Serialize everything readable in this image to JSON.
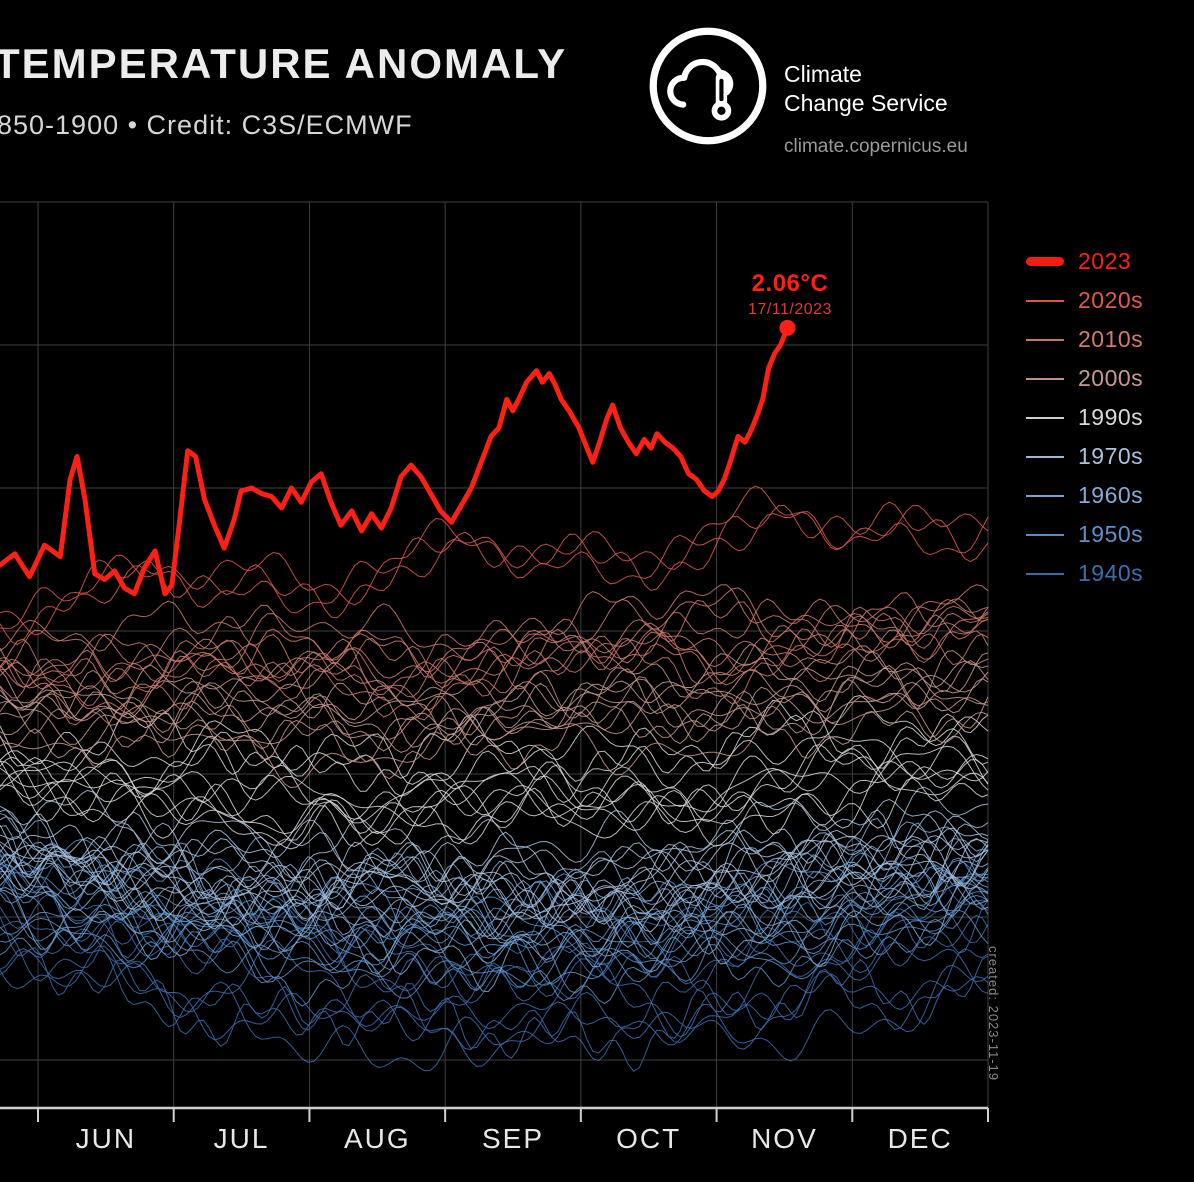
{
  "header": {
    "title": "TEMPERATURE ANOMALY",
    "subtitle": "850-1900 • Credit: C3S/ECMWF"
  },
  "logo": {
    "org_line1": "Climate",
    "org_line2": "Change Service",
    "url": "climate.copernicus.eu",
    "icon": "c3s-cloud-thermometer-icon"
  },
  "annotation": {
    "value": "2.06°C",
    "date": "17/11/2023",
    "color": "#ff2015",
    "date_color": "#e03a2e"
  },
  "created_note": "created: 2023-11-19",
  "colors": {
    "background": "#000000",
    "grid": "#3f3f3f",
    "axis": "#cfcfcf",
    "title_text": "#ececec",
    "subtitle_text": "#d6d6d6"
  },
  "legend": {
    "position": "right",
    "items": [
      {
        "label": "2023",
        "color": "#ff2015",
        "thick": true
      },
      {
        "label": "2020s",
        "color": "#df5b4b",
        "thick": false
      },
      {
        "label": "2010s",
        "color": "#d07b6d",
        "thick": false
      },
      {
        "label": "2000s",
        "color": "#c89a8e",
        "thick": false
      },
      {
        "label": "1990s",
        "color": "#d9d9d9",
        "thick": false
      },
      {
        "label": "1970s",
        "color": "#a9c3de",
        "thick": false
      },
      {
        "label": "1960s",
        "color": "#82add6",
        "thick": false
      },
      {
        "label": "1950s",
        "color": "#5d92c9",
        "thick": false
      },
      {
        "label": "1940s",
        "color": "#3d6fb0",
        "thick": false
      }
    ]
  },
  "chart_data": {
    "type": "line",
    "title": "TEMPERATURE ANOMALY",
    "subtitle": "850-1900 • Credit: C3S/ECMWF",
    "xlabel": "",
    "ylabel": "",
    "y_unit": "°C",
    "grid": true,
    "legend_position": "right",
    "x_ticks": [
      "JUN",
      "JUL",
      "AUG",
      "SEP",
      "OCT",
      "NOV",
      "DEC"
    ],
    "ylim": [
      -0.75,
      2.6
    ],
    "y_gridlines": [
      2.5,
      2.0,
      1.5,
      1.0,
      0.5,
      0.0,
      -0.5
    ],
    "peak_annotation": {
      "value_c": 2.06,
      "date": "17/11/2023"
    },
    "highlight": {
      "name": "2023",
      "color": "#ff2015",
      "x": [
        0,
        0.015,
        0.03,
        0.045,
        0.061,
        0.071,
        0.078,
        0.086,
        0.096,
        0.106,
        0.116,
        0.126,
        0.136,
        0.146,
        0.157,
        0.167,
        0.174,
        0.182,
        0.19,
        0.198,
        0.207,
        0.217,
        0.227,
        0.237,
        0.244,
        0.255,
        0.265,
        0.275,
        0.285,
        0.295,
        0.305,
        0.315,
        0.325,
        0.335,
        0.345,
        0.356,
        0.366,
        0.376,
        0.386,
        0.396,
        0.406,
        0.416,
        0.426,
        0.436,
        0.446,
        0.457,
        0.467,
        0.477,
        0.487,
        0.497,
        0.505,
        0.513,
        0.519,
        0.525,
        0.533,
        0.543,
        0.549,
        0.556,
        0.562,
        0.568,
        0.576,
        0.586,
        0.594,
        0.6,
        0.606,
        0.614,
        0.62,
        0.628,
        0.636,
        0.644,
        0.652,
        0.659,
        0.665,
        0.673,
        0.681,
        0.689,
        0.697,
        0.705,
        0.713,
        0.721,
        0.727,
        0.733,
        0.739,
        0.747,
        0.754,
        0.76,
        0.766,
        0.772,
        0.778,
        0.784,
        0.79,
        0.797
      ],
      "values": [
        1.23,
        1.27,
        1.19,
        1.3,
        1.26,
        1.53,
        1.61,
        1.46,
        1.2,
        1.18,
        1.21,
        1.15,
        1.13,
        1.22,
        1.28,
        1.13,
        1.16,
        1.39,
        1.63,
        1.61,
        1.46,
        1.37,
        1.29,
        1.39,
        1.49,
        1.5,
        1.48,
        1.47,
        1.43,
        1.5,
        1.45,
        1.52,
        1.55,
        1.45,
        1.37,
        1.42,
        1.35,
        1.41,
        1.36,
        1.43,
        1.54,
        1.58,
        1.54,
        1.48,
        1.42,
        1.38,
        1.44,
        1.5,
        1.59,
        1.68,
        1.71,
        1.81,
        1.77,
        1.81,
        1.87,
        1.91,
        1.87,
        1.9,
        1.86,
        1.81,
        1.77,
        1.71,
        1.64,
        1.59,
        1.65,
        1.74,
        1.79,
        1.71,
        1.66,
        1.62,
        1.67,
        1.64,
        1.69,
        1.66,
        1.64,
        1.61,
        1.55,
        1.53,
        1.49,
        1.47,
        1.49,
        1.53,
        1.59,
        1.68,
        1.66,
        1.7,
        1.75,
        1.81,
        1.92,
        1.97,
        2.0,
        2.06
      ]
    },
    "ensembles": [
      {
        "name": "1940s",
        "color": "#3d6fb0",
        "count": 10,
        "base": -0.05,
        "spread": 0.16,
        "trend": -0.05,
        "dip": 0.22,
        "noise": 0.11
      },
      {
        "name": "1950s",
        "color": "#5d92c9",
        "count": 10,
        "base": 0.06,
        "spread": 0.13,
        "trend": 0.0,
        "dip": 0.18,
        "noise": 0.11
      },
      {
        "name": "1960s",
        "color": "#82add6",
        "count": 10,
        "base": 0.16,
        "spread": 0.11,
        "trend": 0.0,
        "dip": 0.16,
        "noise": 0.11
      },
      {
        "name": "1970s",
        "color": "#a9c3de",
        "count": 10,
        "base": 0.28,
        "spread": 0.11,
        "trend": 0.03,
        "dip": 0.13,
        "noise": 0.1
      },
      {
        "name": "1990s",
        "color": "#d9d9d9",
        "count": 10,
        "base": 0.54,
        "spread": 0.11,
        "trend": 0.06,
        "dip": 0.1,
        "noise": 0.1
      },
      {
        "name": "2000s",
        "color": "#c89a8e",
        "count": 10,
        "base": 0.74,
        "spread": 0.1,
        "trend": 0.1,
        "dip": 0.07,
        "noise": 0.1
      },
      {
        "name": "2010s",
        "color": "#d07b6d",
        "count": 10,
        "base": 0.94,
        "spread": 0.1,
        "trend": 0.16,
        "dip": 0.04,
        "noise": 0.1
      },
      {
        "name": "2020s",
        "color": "#df5b4b",
        "count": 3,
        "base": 1.12,
        "spread": 0.1,
        "trend": 0.3,
        "dip": 0.0,
        "noise": 0.1
      }
    ]
  }
}
